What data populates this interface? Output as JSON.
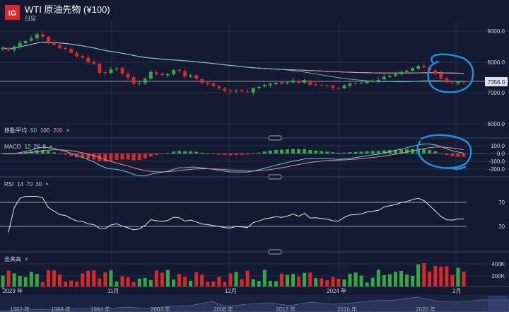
{
  "header": {
    "logo": "IG",
    "title": "WTI 原油先物 (¥100)",
    "interval": "日足"
  },
  "price_panel": {
    "y_ticks": [
      "9000.0",
      "8000.0",
      "7000.0",
      "6000.0"
    ],
    "current_price": "7356.0",
    "ma_legend": {
      "label": "移動平均",
      "p1": "50",
      "p2": "100",
      "p3": "200",
      "close": "×"
    }
  },
  "macd_panel": {
    "label": "MACD",
    "fast": "12",
    "slow": "26",
    "signal": "9",
    "close": "×",
    "y_ticks": [
      "100.0",
      "0.0",
      "-100.0",
      "-200.0"
    ]
  },
  "rsi_panel": {
    "label": "RSI",
    "period": "14",
    "upper": "70",
    "lower": "30",
    "close": "×",
    "y_ticks": [
      "70",
      "30"
    ]
  },
  "volume_panel": {
    "label": "出来高",
    "close": "×",
    "y_ticks": [
      "400K",
      "200K"
    ]
  },
  "time_axis": [
    "2023 年",
    "11月",
    "12月",
    "2024 年",
    "2月"
  ],
  "navigator_axis": [
    "1982 年",
    "1988 年",
    "1994 年",
    "2004 年",
    "2008 年",
    "2012 年",
    "2016 年",
    "2020 年"
  ],
  "colors": {
    "background": "#131a31",
    "up": "#35a845",
    "down": "#d62a2a",
    "ma50": "#5fd0d8",
    "ma100": "#e88c8c",
    "ma200": "#e8e8e8",
    "annotation": "#1e8fe0",
    "logo": "#e0262a"
  },
  "chart_data": {
    "type": "candlestick",
    "title": "WTI 原油先物 (¥100)",
    "interval": "daily",
    "ylim": [
      5700,
      9300
    ],
    "current_price": 7356.0,
    "close_series": [
      8460,
      8390,
      8500,
      8620,
      8680,
      8760,
      8900,
      8820,
      8650,
      8560,
      8450,
      8420,
      8300,
      8180,
      8150,
      8000,
      7950,
      7650,
      7640,
      7760,
      7800,
      7630,
      7500,
      7300,
      7330,
      7450,
      7680,
      7610,
      7580,
      7610,
      7740,
      7710,
      7530,
      7570,
      7460,
      7330,
      7290,
      7220,
      7150,
      7070,
      7050,
      7090,
      7060,
      7020,
      7150,
      7200,
      7260,
      7290,
      7330,
      7300,
      7340,
      7400,
      7330,
      7420,
      7260,
      7270,
      7240,
      7220,
      7160,
      7150,
      7240,
      7300,
      7310,
      7330,
      7380,
      7400,
      7420,
      7520,
      7560,
      7600,
      7680,
      7720,
      7800,
      7870,
      7830,
      7740,
      7620,
      7460,
      7340,
      7330,
      7360,
      7356
    ],
    "ma_periods": [
      50,
      100,
      200
    ],
    "macd": {
      "fast": 12,
      "slow": 26,
      "signal": 9,
      "ylim": [
        -250,
        150
      ]
    },
    "rsi": {
      "period": 14,
      "upper": 70,
      "lower": 30
    },
    "volume_ylim": [
      0,
      500000
    ]
  }
}
